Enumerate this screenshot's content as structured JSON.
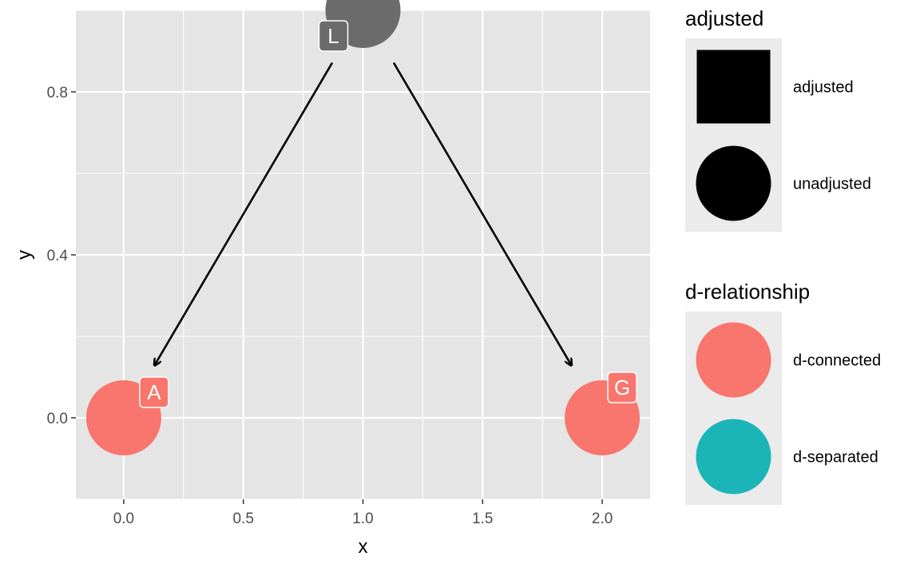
{
  "chart_data": {
    "type": "scatter",
    "subtype": "dag",
    "title": "",
    "xlabel": "x",
    "ylabel": "y",
    "xlim": [
      -0.2,
      2.2
    ],
    "ylim": [
      -0.2,
      1.0
    ],
    "x_ticks": [
      {
        "value": 0.0,
        "label": "0.0"
      },
      {
        "value": 0.5,
        "label": "0.5"
      },
      {
        "value": 1.0,
        "label": "1.0"
      },
      {
        "value": 1.5,
        "label": "1.5"
      },
      {
        "value": 2.0,
        "label": "2.0"
      }
    ],
    "y_ticks": [
      {
        "value": 0.0,
        "label": "0.0"
      },
      {
        "value": 0.4,
        "label": "0.4"
      },
      {
        "value": 0.8,
        "label": "0.8"
      }
    ],
    "grid": true,
    "nodes": [
      {
        "name": "A",
        "x": 0.0,
        "y": 0.0,
        "adjusted": "unadjusted",
        "relationship": "d-connected",
        "color": "#F8766D"
      },
      {
        "name": "L",
        "x": 1.0,
        "y": 1.0,
        "adjusted": "unadjusted",
        "relationship": "",
        "color": "#6B6B6B"
      },
      {
        "name": "G",
        "x": 2.0,
        "y": 0.0,
        "adjusted": "unadjusted",
        "relationship": "d-connected",
        "color": "#F8766D"
      }
    ],
    "edges": [
      {
        "from": "L",
        "to": "A"
      },
      {
        "from": "L",
        "to": "G"
      }
    ],
    "legends": [
      {
        "title": "adjusted",
        "placement": "right",
        "entries": [
          {
            "label": "adjusted",
            "shape": "square",
            "color": "#000000"
          },
          {
            "label": "unadjusted",
            "shape": "circle",
            "color": "#000000"
          }
        ]
      },
      {
        "title": "d-relationship",
        "placement": "right",
        "entries": [
          {
            "label": "d-connected",
            "shape": "circle",
            "color": "#F8766D"
          },
          {
            "label": "d-separated",
            "shape": "circle",
            "color": "#1BB5B8"
          }
        ]
      }
    ],
    "colors": {
      "panel_background": "#E5E5E5",
      "grid": "#FFFFFF",
      "legend_key_background": "#EBEBEB",
      "edge": "#000000"
    }
  }
}
